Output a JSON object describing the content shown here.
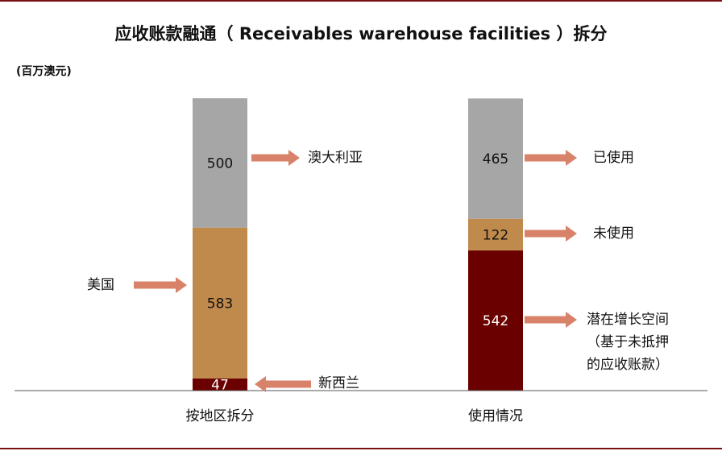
{
  "title": "应收账款融通（ Receivables warehouse facilities ）拆分",
  "unit": "(百万澳元)",
  "chart_data": {
    "type": "bar",
    "stacked": true,
    "categories": [
      "按地区拆分",
      "使用情况"
    ],
    "bars": [
      {
        "category": "按地区拆分",
        "segments": [
          {
            "name": "新西兰",
            "value": 47,
            "color": "#6b0000"
          },
          {
            "name": "美国",
            "value": 583,
            "color": "#c08a4c"
          },
          {
            "name": "澳大利亚",
            "value": 500,
            "color": "#a6a6a6"
          }
        ]
      },
      {
        "category": "使用情况",
        "segments": [
          {
            "name": "潜在增长空间（基于未抵押的应收账款）",
            "value": 542,
            "color": "#6b0000"
          },
          {
            "name": "未使用",
            "value": 122,
            "color": "#c08a4c"
          },
          {
            "name": "已使用",
            "value": 465,
            "color": "#a6a6a6"
          }
        ]
      }
    ],
    "annotations": {
      "au": "澳大利亚",
      "us": "美国",
      "nz": "新西兰",
      "used": "已使用",
      "unused": "未使用",
      "growth": [
        "潜在增长空间",
        "（基于未抵押",
        "的应收账款）"
      ]
    },
    "arrow_color": "#d9826a",
    "grid": false
  }
}
